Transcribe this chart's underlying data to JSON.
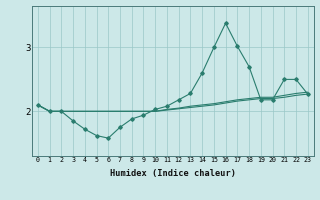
{
  "xlabel": "Humidex (Indice chaleur)",
  "x": [
    0,
    1,
    2,
    3,
    4,
    5,
    6,
    7,
    8,
    9,
    10,
    11,
    12,
    13,
    14,
    15,
    16,
    17,
    18,
    19,
    20,
    21,
    22,
    23
  ],
  "line1_y": [
    2.1,
    2.0,
    2.0,
    1.85,
    1.72,
    1.62,
    1.58,
    1.75,
    1.88,
    1.94,
    2.03,
    2.08,
    2.18,
    2.28,
    2.6,
    3.0,
    3.38,
    3.02,
    2.7,
    2.18,
    2.18,
    2.5,
    2.5,
    2.27
  ],
  "line2_y": [
    2.1,
    2.0,
    2.0,
    2.0,
    2.0,
    2.0,
    2.0,
    2.0,
    2.0,
    2.0,
    2.0,
    2.03,
    2.05,
    2.08,
    2.1,
    2.12,
    2.15,
    2.18,
    2.2,
    2.22,
    2.22,
    2.25,
    2.28,
    2.3
  ],
  "line3_y": [
    2.1,
    2.0,
    2.0,
    2.0,
    2.0,
    2.0,
    2.0,
    2.0,
    2.0,
    2.0,
    2.0,
    2.02,
    2.04,
    2.06,
    2.08,
    2.1,
    2.13,
    2.16,
    2.18,
    2.2,
    2.2,
    2.22,
    2.25,
    2.27
  ],
  "line_color": "#2a7d6e",
  "bg_color": "#cce8e8",
  "grid_color": "#9ac8c8",
  "yticks": [
    2,
    3
  ],
  "ylim": [
    1.3,
    3.65
  ],
  "xlim": [
    -0.5,
    23.5
  ]
}
